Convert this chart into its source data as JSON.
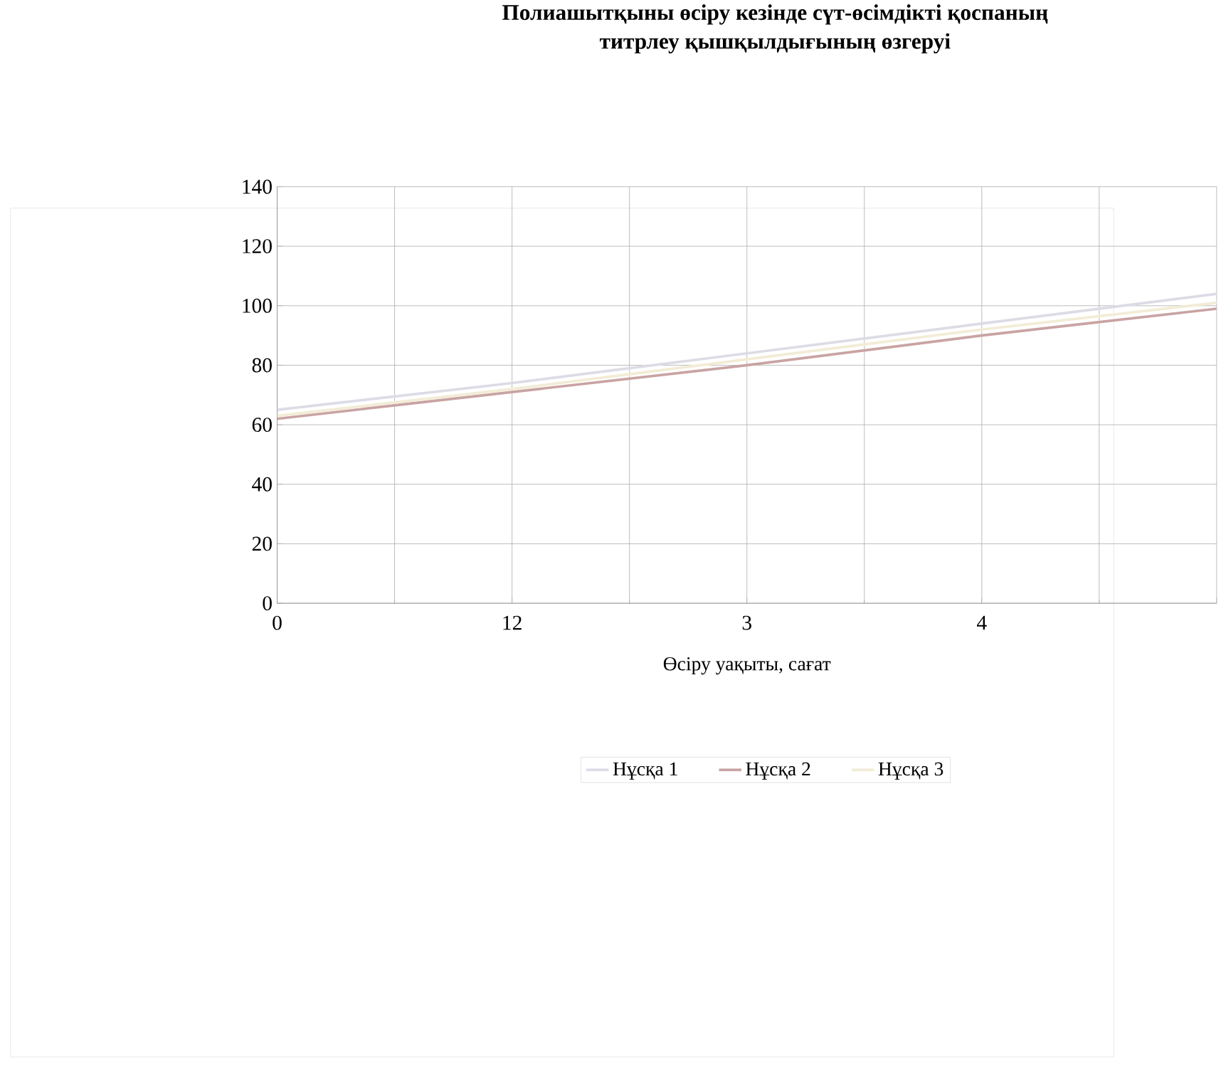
{
  "chart_data": {
    "type": "line",
    "title": "Полиашытқыны  өсіру кезінде сүт-өсімдікті қоспаның\nтитрлеу қышқылдығының өзгеруі",
    "xlabel": "Өсіру уақыты, сағат",
    "categories": [
      "0",
      "12",
      "3",
      "4",
      null
    ],
    "ylim": [
      0,
      140
    ],
    "yticks": [
      0,
      20,
      40,
      60,
      80,
      100,
      120,
      140
    ],
    "grid": true,
    "legend": "bottom",
    "marker": "none",
    "line_style": "solid",
    "series": [
      {
        "name": "Нұсқа 1",
        "color": "#dcdce6",
        "values": [
          65,
          74,
          84,
          94,
          104
        ]
      },
      {
        "name": "Нұсқа 2",
        "color": "#c9a3a3",
        "values": [
          62,
          71,
          80,
          90,
          99
        ]
      },
      {
        "name": "Нұсқа 3",
        "color": "#f2ecd6",
        "values": [
          63,
          72,
          82,
          92,
          101
        ]
      }
    ]
  }
}
